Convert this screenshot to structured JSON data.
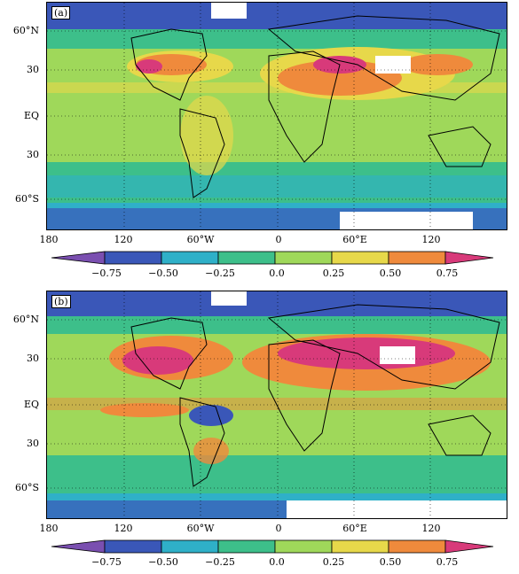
{
  "panels": [
    {
      "label": "(a)"
    },
    {
      "label": "(b)"
    }
  ],
  "lat_labels": [
    "60°N",
    "30",
    "EQ",
    "30",
    "60°S"
  ],
  "lon_labels": [
    "180",
    "120",
    "60°W",
    "0",
    "60°E",
    "120"
  ],
  "colorbar": {
    "ticks": [
      "−0.75",
      "−0.50",
      "−0.25",
      "0.0",
      "0.25",
      "0.50",
      "0.75"
    ],
    "colors": [
      "#7a4fb0",
      "#3a57b8",
      "#2fb0c8",
      "#3dbf8a",
      "#9fd85a",
      "#e7d84a",
      "#ef8a3c",
      "#d83a7a"
    ]
  }
}
